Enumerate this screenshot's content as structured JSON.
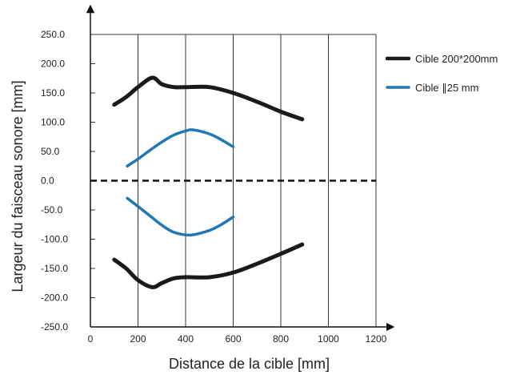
{
  "chart_data": {
    "type": "line",
    "xlabel": "Distance de la cible [mm]",
    "ylabel": "Largeur du faisceau sonore  [mm]",
    "xlim": [
      0,
      1200
    ],
    "ylim": [
      -250,
      250
    ],
    "x_ticks": [
      0,
      200,
      400,
      600,
      800,
      1000,
      1200
    ],
    "x_tick_labels": [
      "0",
      "200",
      "400",
      "600",
      "800",
      "1000",
      "1200"
    ],
    "y_ticks": [
      250,
      200,
      150,
      100,
      50,
      0,
      -50,
      -100,
      -150,
      -200,
      -250
    ],
    "y_tick_labels": [
      "250.0",
      "200.0",
      "150.0",
      "100.0",
      "50.0",
      "0.0",
      "-50.0",
      "-100.0",
      "-150.0",
      "-200.0",
      "-250.0"
    ],
    "grid": "vertical",
    "legend_position": "right",
    "zero_line": "dashed",
    "series": [
      {
        "name": "Cible 200*200mm",
        "color": "#1a1a1a",
        "upper": [
          [
            100,
            130
          ],
          [
            150,
            143
          ],
          [
            200,
            160
          ],
          [
            260,
            176
          ],
          [
            300,
            165
          ],
          [
            350,
            160
          ],
          [
            400,
            160
          ],
          [
            500,
            160
          ],
          [
            600,
            150
          ],
          [
            700,
            135
          ],
          [
            800,
            118
          ],
          [
            890,
            105
          ]
        ],
        "lower": [
          [
            100,
            -135
          ],
          [
            150,
            -150
          ],
          [
            200,
            -170
          ],
          [
            260,
            -182
          ],
          [
            300,
            -175
          ],
          [
            350,
            -167
          ],
          [
            400,
            -165
          ],
          [
            500,
            -165
          ],
          [
            600,
            -157
          ],
          [
            700,
            -142
          ],
          [
            800,
            -125
          ],
          [
            890,
            -109
          ]
        ]
      },
      {
        "name": "Cible ∥25 mm",
        "color": "#1f77b4",
        "upper": [
          [
            155,
            25
          ],
          [
            200,
            37
          ],
          [
            250,
            52
          ],
          [
            300,
            66
          ],
          [
            350,
            78
          ],
          [
            400,
            85
          ],
          [
            430,
            87
          ],
          [
            500,
            80
          ],
          [
            550,
            70
          ],
          [
            600,
            58
          ]
        ],
        "lower": [
          [
            155,
            -30
          ],
          [
            200,
            -44
          ],
          [
            250,
            -60
          ],
          [
            300,
            -76
          ],
          [
            350,
            -88
          ],
          [
            420,
            -93
          ],
          [
            500,
            -85
          ],
          [
            550,
            -75
          ],
          [
            600,
            -62
          ]
        ]
      }
    ]
  }
}
